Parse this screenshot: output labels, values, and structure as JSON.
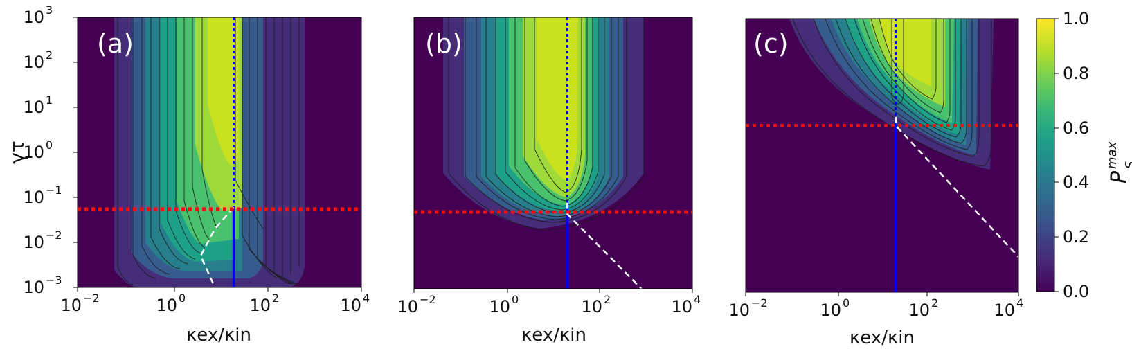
{
  "chart_data": [
    {
      "type": "heatmap",
      "panel_label": "(a)",
      "xlabel": "κex/κin",
      "ylabel": "γτ",
      "x_scale": "log",
      "y_scale": "log",
      "xlim": [
        0.01,
        10000
      ],
      "ylim": [
        0.001,
        1000
      ],
      "x_ticks": [
        {
          "base": "10",
          "exp": "−2",
          "value": 0.01
        },
        {
          "base": "10",
          "exp": "0",
          "value": 1
        },
        {
          "base": "10",
          "exp": "2",
          "value": 100
        },
        {
          "base": "10",
          "exp": "4",
          "value": 10000
        }
      ],
      "y_ticks": [
        {
          "base": "10",
          "exp": "−3",
          "value": 0.001
        },
        {
          "base": "10",
          "exp": "−2",
          "value": 0.01
        },
        {
          "base": "10",
          "exp": "−1",
          "value": 0.1
        },
        {
          "base": "10",
          "exp": "0",
          "value": 1
        },
        {
          "base": "10",
          "exp": "1",
          "value": 10
        },
        {
          "base": "10",
          "exp": "2",
          "value": 100
        },
        {
          "base": "10",
          "exp": "3",
          "value": 1000
        }
      ],
      "blue_line_x": 20,
      "blue_dotted_from_y": 0.06,
      "red_dotted_y": 0.055,
      "white_dashed_line": [
        [
          20,
          0.06
        ],
        [
          8,
          0.02
        ],
        [
          4,
          0.005
        ],
        [
          8,
          0.001
        ]
      ]
    },
    {
      "type": "heatmap",
      "panel_label": "(b)",
      "xlabel": "κex/κin",
      "x_scale": "log",
      "y_scale": "log",
      "xlim": [
        0.01,
        10000
      ],
      "ylim": [
        0.001,
        1000
      ],
      "x_ticks": [
        {
          "base": "10",
          "exp": "−2",
          "value": 0.01
        },
        {
          "base": "10",
          "exp": "0",
          "value": 1
        },
        {
          "base": "10",
          "exp": "2",
          "value": 100
        },
        {
          "base": "10",
          "exp": "4",
          "value": 10000
        }
      ],
      "blue_line_x": 20,
      "blue_dotted_from_y": 0.08,
      "red_dotted_y": 0.05,
      "white_dashed_line": [
        [
          20,
          0.08
        ],
        [
          20,
          0.045
        ],
        [
          800,
          0.001
        ]
      ]
    },
    {
      "type": "heatmap",
      "panel_label": "(c)",
      "xlabel": "κex/κin",
      "x_scale": "log",
      "y_scale": "log",
      "xlim": [
        0.01,
        10000
      ],
      "ylim": [
        0.001,
        1000
      ],
      "x_ticks": [
        {
          "base": "10",
          "exp": "−2",
          "value": 0.01
        },
        {
          "base": "10",
          "exp": "0",
          "value": 1
        },
        {
          "base": "10",
          "exp": "2",
          "value": 100
        },
        {
          "base": "10",
          "exp": "4",
          "value": 10000
        }
      ],
      "blue_line_x": 20,
      "blue_dotted_from_y": 7,
      "red_dotted_y": 4.5,
      "white_dashed_line": [
        [
          20,
          7
        ],
        [
          20,
          4.5
        ],
        [
          10000,
          0.006
        ]
      ]
    }
  ],
  "colorbar": {
    "label_base": "P",
    "label_sub": "S",
    "label_sup": "max",
    "range": [
      0,
      1
    ],
    "ticks": [
      "0.0",
      "0.2",
      "0.4",
      "0.6",
      "0.8",
      "1.0"
    ],
    "colors": [
      "#440154",
      "#482878",
      "#3e4989",
      "#31688e",
      "#26828e",
      "#1f9e89",
      "#35b779",
      "#6ece58",
      "#b5de2b",
      "#fde725"
    ]
  },
  "line_colors": {
    "blue": "#0000ee",
    "red": "#ee1111",
    "white": "#ffffff",
    "contour": "#1a1a1a"
  }
}
